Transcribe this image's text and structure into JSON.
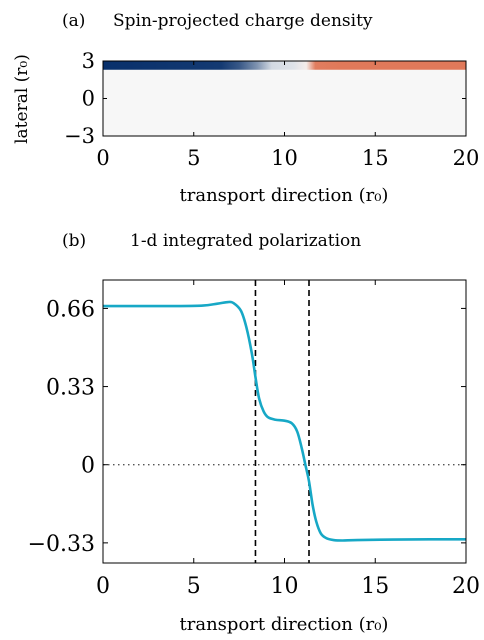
{
  "chart_data": [
    {
      "type": "heatmap",
      "panel_label": "(a)",
      "title": "Spin-projected charge density",
      "xlabel": "transport direction (r₀)",
      "ylabel": "lateral (r₀)",
      "xlim": [
        0,
        20
      ],
      "ylim": [
        -3,
        3
      ],
      "xticks": [
        "0",
        "5",
        "10",
        "15",
        "20"
      ],
      "yticks": [
        "−3",
        "0",
        "3"
      ],
      "xtick_values": [
        0,
        5,
        10,
        15,
        20
      ],
      "ytick_values": [
        -3,
        0,
        3
      ],
      "stripe_y_range": [
        2.3,
        3
      ],
      "stripe_values": [
        {
          "x": 0,
          "v": -1.0
        },
        {
          "x": 6.5,
          "v": -0.95
        },
        {
          "x": 7.5,
          "v": -0.8
        },
        {
          "x": 8.5,
          "v": -0.5
        },
        {
          "x": 9.3,
          "v": -0.15
        },
        {
          "x": 10.5,
          "v": -0.1
        },
        {
          "x": 11.2,
          "v": 0.05
        },
        {
          "x": 11.7,
          "v": 0.6
        },
        {
          "x": 13,
          "v": 0.62
        },
        {
          "x": 20,
          "v": 0.62
        }
      ],
      "colors": {
        "negative": "#08306b",
        "neutral": "#f7f7f7",
        "positive": "#e0795a"
      }
    },
    {
      "type": "line",
      "panel_label": "(b)",
      "title": "1-d integrated polarization",
      "xlabel": "transport direction (r₀)",
      "xlim": [
        0,
        20
      ],
      "ylim": [
        -0.415,
        0.78
      ],
      "xticks": [
        "0",
        "5",
        "10",
        "15",
        "20"
      ],
      "xtick_values": [
        0,
        5,
        10,
        15,
        20
      ],
      "yticks": [
        "0.66",
        "0.33",
        "0",
        "−0.33"
      ],
      "ytick_values": [
        0.66,
        0.33,
        0,
        -0.33
      ],
      "vlines": [
        8.4,
        11.35
      ],
      "hline": 0,
      "line_color": "#17a8c6",
      "x": [
        0,
        2,
        4,
        5.5,
        6.3,
        6.9,
        7.2,
        7.6,
        7.9,
        8.2,
        8.4,
        8.6,
        8.85,
        9.1,
        9.5,
        10.0,
        10.4,
        10.7,
        10.95,
        11.15,
        11.35,
        11.55,
        11.75,
        12.0,
        12.3,
        12.7,
        13.2,
        14,
        16,
        18,
        20
      ],
      "y": [
        0.67,
        0.67,
        0.67,
        0.672,
        0.68,
        0.687,
        0.682,
        0.65,
        0.58,
        0.47,
        0.37,
        0.28,
        0.225,
        0.2,
        0.19,
        0.186,
        0.175,
        0.14,
        0.07,
        0.0,
        -0.07,
        -0.17,
        -0.24,
        -0.29,
        -0.31,
        -0.318,
        -0.32,
        -0.318,
        -0.316,
        -0.315,
        -0.315
      ]
    }
  ]
}
